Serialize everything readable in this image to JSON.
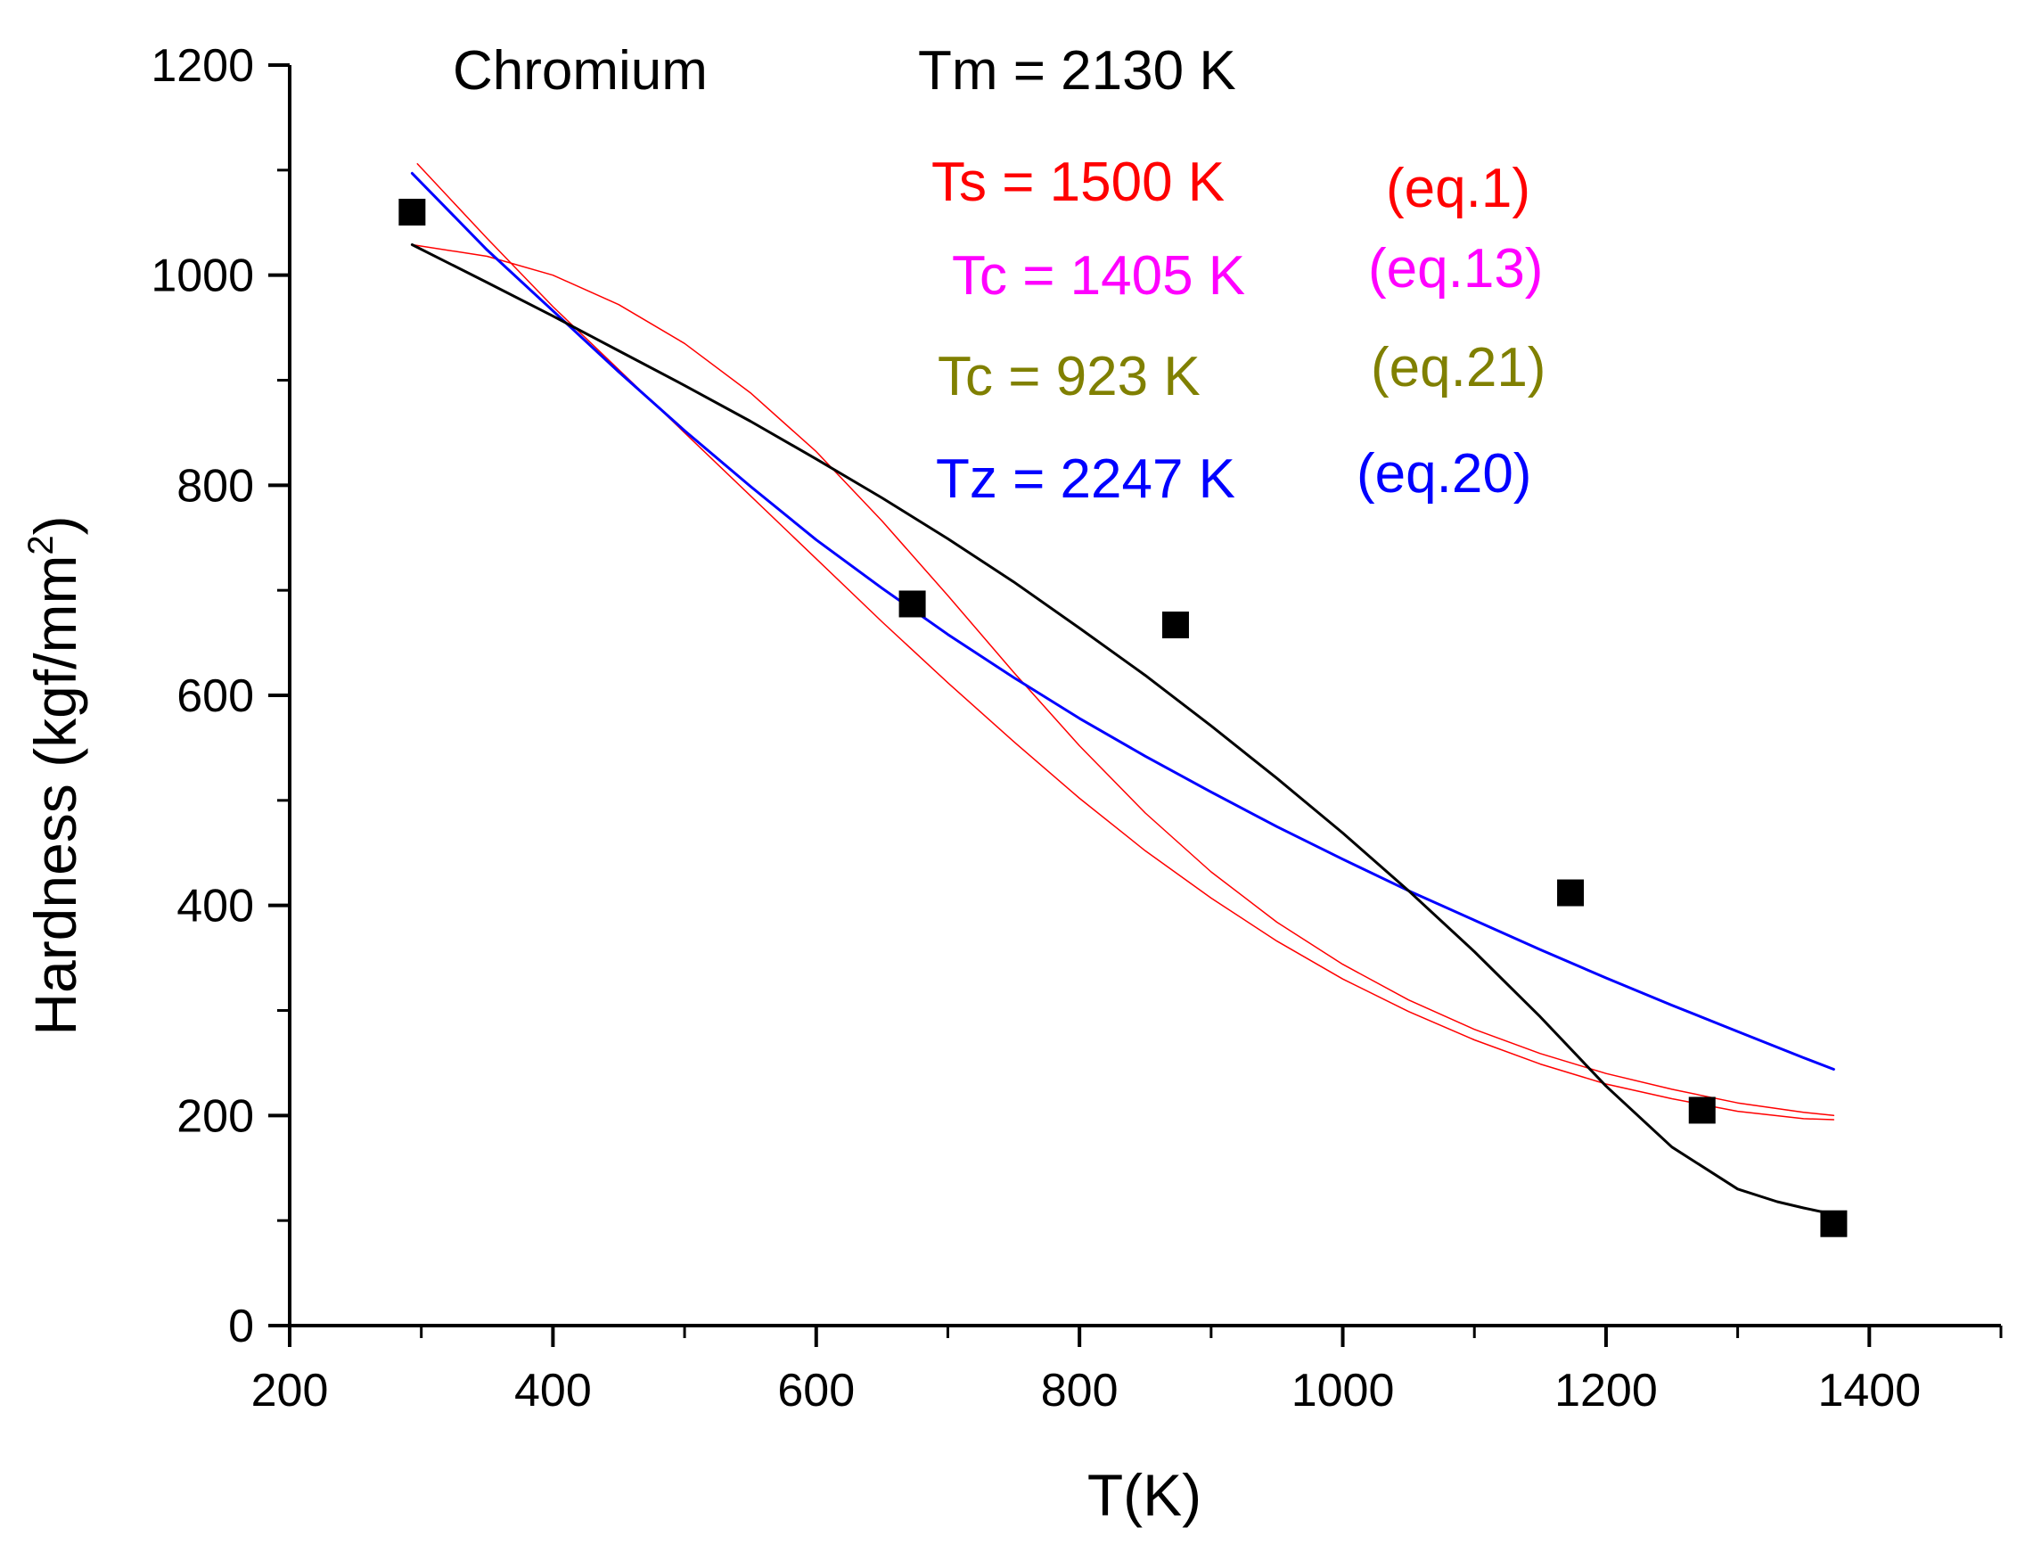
{
  "chart_data": {
    "type": "scatter",
    "xlabel": "T(K)",
    "ylabel_main": "Hardness (kgf/mm",
    "ylabel_sup": "2",
    "ylabel_end": ")",
    "xlim": [
      200,
      1500
    ],
    "ylim": [
      0,
      1200
    ],
    "x_ticks": [
      200,
      400,
      600,
      800,
      1000,
      1200,
      1400
    ],
    "x_tick_labels": [
      "200",
      "400",
      "600",
      "800",
      "1000",
      "1200",
      "1400"
    ],
    "y_ticks": [
      0,
      200,
      400,
      600,
      800,
      1000,
      1200
    ],
    "y_tick_labels": [
      "0",
      "200",
      "400",
      "600",
      "800",
      "1000",
      "1200"
    ],
    "x_minor_step": 100,
    "y_minor_step": 100,
    "data_points": {
      "name": "Chromium experimental hardness",
      "color": "#000000",
      "marker": "square",
      "x": [
        293,
        673,
        873,
        1173,
        1273,
        1373
      ],
      "y": [
        1060,
        687,
        667,
        412,
        205,
        97
      ]
    },
    "series": [
      {
        "name": "eq.1 fit",
        "color": "#ff0000",
        "width": 1.5,
        "x": [
          297,
          350,
          400,
          450,
          500,
          550,
          600,
          650,
          700,
          750,
          800,
          850,
          900,
          950,
          1000,
          1050,
          1100,
          1150,
          1200,
          1250,
          1300,
          1350,
          1373
        ],
        "y": [
          1106,
          1035,
          970,
          910,
          850,
          790,
          730,
          670,
          612,
          556,
          502,
          452,
          407,
          366,
          330,
          299,
          272,
          249,
          230,
          216,
          204,
          197,
          196
        ]
      },
      {
        "name": "eq.13 fit",
        "color": "#ff0000",
        "width": 1.5,
        "x": [
          293,
          350,
          400,
          450,
          500,
          550,
          600,
          650,
          700,
          750,
          800,
          850,
          900,
          950,
          1000,
          1050,
          1100,
          1150,
          1200,
          1250,
          1300,
          1350,
          1373
        ],
        "y": [
          1029,
          1018,
          1000,
          972,
          935,
          888,
          832,
          766,
          695,
          622,
          552,
          488,
          432,
          384,
          344,
          310,
          282,
          259,
          240,
          225,
          212,
          203,
          200
        ]
      },
      {
        "name": "eq.20 fit",
        "color": "#0000ff",
        "width": 3,
        "x": [
          293,
          350,
          400,
          450,
          500,
          550,
          600,
          650,
          700,
          750,
          800,
          850,
          900,
          950,
          1000,
          1050,
          1100,
          1150,
          1200,
          1250,
          1300,
          1350,
          1373
        ],
        "y": [
          1097,
          1024,
          966,
          908,
          852,
          799,
          748,
          702,
          658,
          617,
          578,
          542,
          508,
          475,
          444,
          414,
          386,
          358,
          331,
          305,
          280,
          255,
          244
        ]
      },
      {
        "name": "eq.21 fit",
        "color": "#000000",
        "width": 3,
        "x": [
          293,
          350,
          400,
          450,
          500,
          550,
          600,
          650,
          700,
          750,
          800,
          850,
          900,
          950,
          1000,
          1050,
          1100,
          1150,
          1200,
          1250,
          1300,
          1330,
          1350,
          1365,
          1373
        ],
        "y": [
          1029,
          993,
          961,
          928,
          895,
          861,
          825,
          788,
          749,
          708,
          664,
          619,
          571,
          521,
          469,
          414,
          356,
          294,
          228,
          170,
          130,
          118,
          112,
          108,
          106
        ]
      }
    ],
    "annotations": {
      "element": {
        "text": "Chromium",
        "color": "#000000"
      },
      "tm": {
        "text": "Tm = 2130 K",
        "color": "#000000"
      },
      "ts": {
        "text": "Ts = 1500 K",
        "eq": "(eq.1)",
        "color": "#ff0000"
      },
      "tc13": {
        "text": "Tc = 1405 K",
        "eq": "(eq.13)",
        "color": "#ff00ff"
      },
      "tc21": {
        "text": "Tc = 923 K",
        "eq": "(eq.21)",
        "color": "#808000"
      },
      "tz": {
        "text": "Tz = 2247 K",
        "eq": "(eq.20)",
        "color": "#0000ff"
      }
    }
  }
}
